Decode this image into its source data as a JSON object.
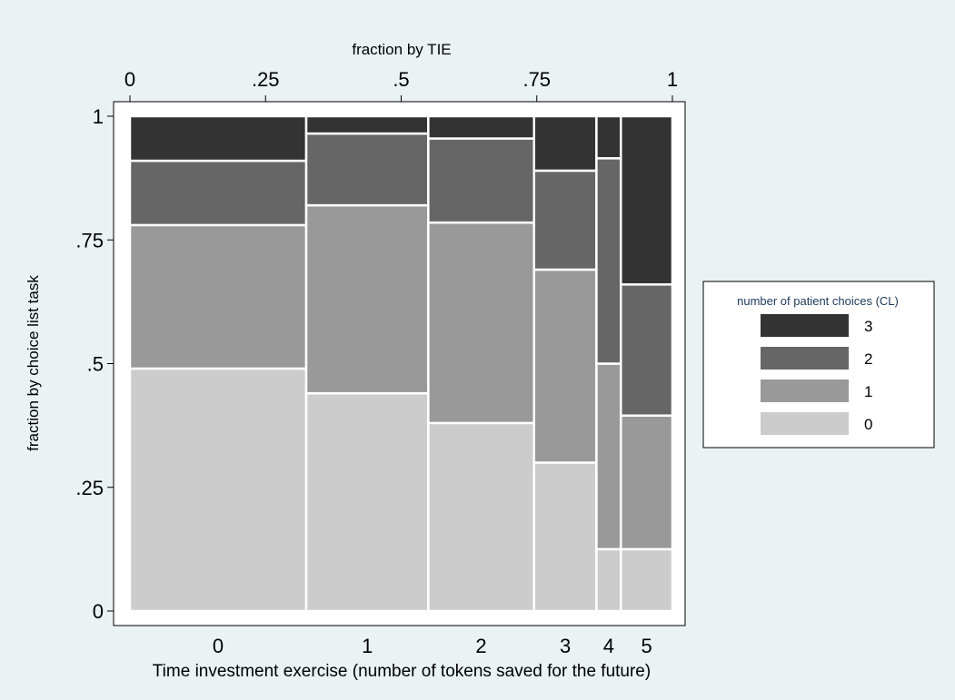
{
  "chart_data": {
    "type": "mosaic",
    "xlabel": "Time investment exercise (number of tokens saved for the future)",
    "x_top_label": "fraction by TIE",
    "ylabel": "fraction by choice list task",
    "x_top_ticks": [
      "0",
      ".25",
      ".5",
      ".75",
      "1"
    ],
    "y_ticks": [
      "0",
      ".25",
      ".5",
      ".75",
      "1"
    ],
    "ylim": [
      0,
      1
    ],
    "xlim": [
      0,
      1
    ],
    "legend": {
      "title": "number of patient choices (CL)",
      "position": "right",
      "entries": [
        {
          "label": "3",
          "color": "#333333"
        },
        {
          "label": "2",
          "color": "#666666"
        },
        {
          "label": "1",
          "color": "#999999"
        },
        {
          "label": "0",
          "color": "#cccccc"
        }
      ]
    },
    "columns": [
      {
        "category": "0",
        "width": 0.325,
        "shares": {
          "0": 0.49,
          "1": 0.29,
          "2": 0.13,
          "3": 0.09
        }
      },
      {
        "category": "1",
        "width": 0.225,
        "shares": {
          "0": 0.44,
          "1": 0.38,
          "2": 0.145,
          "3": 0.035
        }
      },
      {
        "category": "2",
        "width": 0.195,
        "shares": {
          "0": 0.38,
          "1": 0.405,
          "2": 0.17,
          "3": 0.045
        }
      },
      {
        "category": "3",
        "width": 0.115,
        "shares": {
          "0": 0.3,
          "1": 0.39,
          "2": 0.2,
          "3": 0.11
        }
      },
      {
        "category": "4",
        "width": 0.045,
        "shares": {
          "0": 0.125,
          "1": 0.375,
          "2": 0.415,
          "3": 0.085
        }
      },
      {
        "category": "5",
        "width": 0.095,
        "shares": {
          "0": 0.125,
          "1": 0.27,
          "2": 0.265,
          "3": 0.34
        }
      }
    ],
    "colors": {
      "background": "#eaf2f3",
      "plot_background": "#ffffff",
      "3": "#333333",
      "2": "#666666",
      "1": "#999999",
      "0": "#cccccc"
    }
  }
}
